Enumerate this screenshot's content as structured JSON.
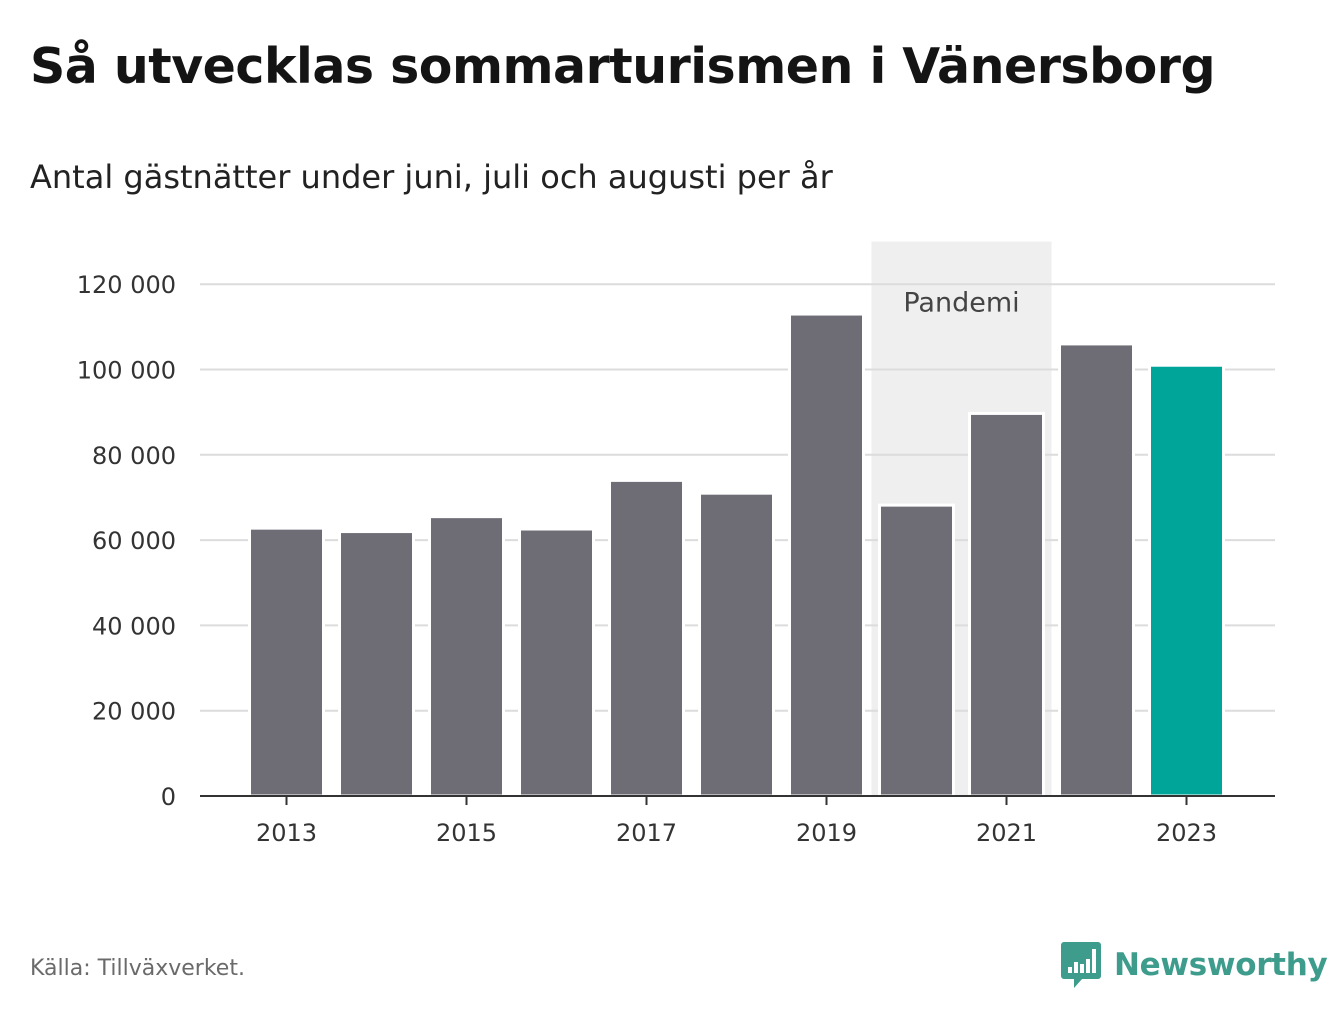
{
  "title": "Så utvecklas sommarturismen i Vänersborg",
  "subtitle": "Antal gästnätter under juni, juli och augusti per år",
  "source": "Källa: Tillväxverket.",
  "brand": {
    "name": "Newsworthy",
    "icon": "newsworthy-logo-icon",
    "color": "#3d9c8c"
  },
  "colors": {
    "bar": "#6e6d75",
    "highlight": "#00a59a",
    "band": "#efefef",
    "grid": "#dcdcdc",
    "axis": "#333333"
  },
  "chart_data": {
    "type": "bar",
    "title": "Så utvecklas sommarturismen i Vänersborg",
    "subtitle": "Antal gästnätter under juni, juli och augusti per år",
    "xlabel": "",
    "ylabel": "",
    "categories": [
      "2013",
      "2014",
      "2015",
      "2016",
      "2017",
      "2018",
      "2019",
      "2020",
      "2021",
      "2022",
      "2023"
    ],
    "values": [
      62800,
      62000,
      65500,
      62600,
      74000,
      71000,
      113000,
      68200,
      89700,
      106000,
      101000
    ],
    "highlight": "2023",
    "ylim": [
      0,
      130000
    ],
    "yticks": [
      0,
      20000,
      40000,
      60000,
      80000,
      100000,
      120000
    ],
    "ytick_labels": [
      "0",
      "20 000",
      "40 000",
      "60 000",
      "80 000",
      "100 000",
      "120 000"
    ],
    "xtick_labels": [
      "2013",
      "2015",
      "2017",
      "2019",
      "2021",
      "2023"
    ],
    "grid": true,
    "legend": "none",
    "annotations": [
      {
        "type": "band",
        "label": "Pandemi",
        "from": "2020",
        "to": "2021"
      }
    ]
  }
}
